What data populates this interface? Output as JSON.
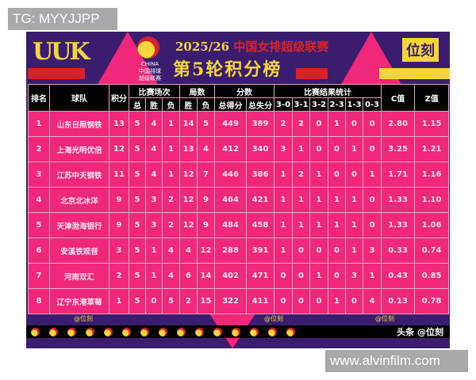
{
  "watermarks": {
    "top": "TG: MYYJJPP",
    "bottom": "www.alvinfilm.com"
  },
  "header": {
    "logo_left": "UUK",
    "brand": "位刻",
    "league_logo_lines": [
      "CHINA",
      "中国排球",
      "超级联赛"
    ],
    "season": "2025/26",
    "league": "中国女排超级联赛",
    "subtitle": "第5轮积分榜"
  },
  "colors": {
    "background": "#3a1d6e",
    "cell": "#f0287a",
    "header": "#000000",
    "accent": "#f4d63a",
    "red": "#d6232a"
  },
  "table": {
    "group_headers": {
      "rank": "排名",
      "team": "球队",
      "points": "积分",
      "matches": "比赛场次",
      "sets": "局数",
      "scores": "分数",
      "results": "比赛结果统计",
      "c": "C值",
      "z": "Z值"
    },
    "sub_headers": [
      "总",
      "胜",
      "负",
      "胜",
      "负",
      "总得分",
      "总失分",
      "3-0",
      "3-1",
      "3-2",
      "2-3",
      "1-3",
      "0-3"
    ],
    "rows": [
      [
        "1",
        "山东日照钢铁",
        "13",
        "5",
        "4",
        "1",
        "14",
        "5",
        "449",
        "389",
        "2",
        "2",
        "0",
        "1",
        "0",
        "0",
        "2.80",
        "1.15"
      ],
      [
        "2",
        "上海光明优倍",
        "12",
        "5",
        "4",
        "1",
        "13",
        "4",
        "412",
        "340",
        "3",
        "1",
        "0",
        "0",
        "1",
        "0",
        "3.25",
        "1.21"
      ],
      [
        "3",
        "江苏中天钢铁",
        "11",
        "5",
        "4",
        "1",
        "12",
        "7",
        "446",
        "386",
        "1",
        "2",
        "1",
        "0",
        "0",
        "1",
        "1.71",
        "1.16"
      ],
      [
        "4",
        "北京北冰洋",
        "9",
        "5",
        "3",
        "2",
        "12",
        "9",
        "464",
        "421",
        "1",
        "1",
        "1",
        "1",
        "1",
        "0",
        "1.33",
        "1.10"
      ],
      [
        "5",
        "天津渤海银行",
        "9",
        "5",
        "3",
        "2",
        "12",
        "9",
        "484",
        "458",
        "1",
        "1",
        "1",
        "1",
        "1",
        "0",
        "1.33",
        "1.06"
      ],
      [
        "6",
        "安溪铁观音",
        "3",
        "5",
        "1",
        "4",
        "4",
        "12",
        "288",
        "391",
        "1",
        "0",
        "0",
        "0",
        "1",
        "3",
        "0.33",
        "0.74"
      ],
      [
        "7",
        "河南双汇",
        "2",
        "5",
        "1",
        "4",
        "6",
        "14",
        "402",
        "471",
        "0",
        "0",
        "1",
        "0",
        "3",
        "1",
        "0.43",
        "0.85"
      ],
      [
        "8",
        "辽宁东港草莓",
        "1",
        "5",
        "0",
        "5",
        "2",
        "15",
        "322",
        "411",
        "0",
        "0",
        "0",
        "1",
        "0",
        "4",
        "0.13",
        "0.78"
      ]
    ]
  },
  "overlay_tag": "@位刻",
  "footer": {
    "text": "头条 @位刻"
  }
}
